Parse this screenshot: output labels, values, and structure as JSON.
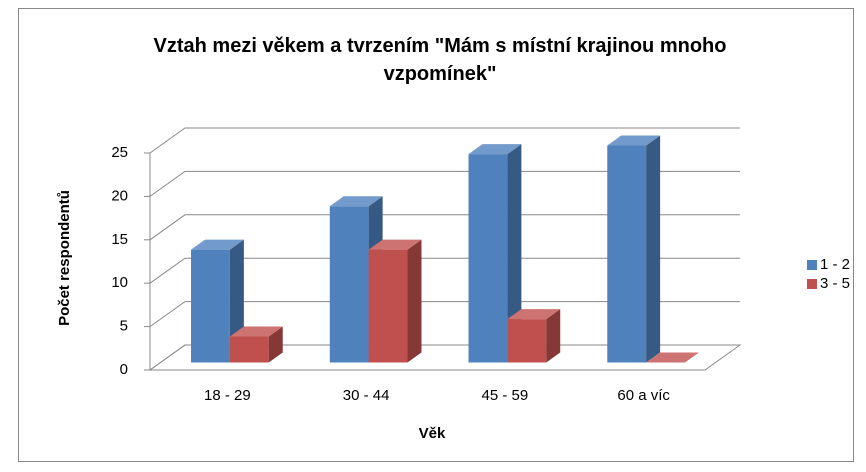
{
  "chart_data": {
    "type": "bar3d",
    "title": "Vztah mezi věkem a tvrzením \"Mám s místní krajinou mnoho vzpomínek\"",
    "xlabel": "Věk",
    "ylabel": "Počet respondentů",
    "categories": [
      "18 - 29",
      "30 - 44",
      "45 - 59",
      "60 a víc"
    ],
    "series": [
      {
        "name": "1 - 2",
        "color": "#4f81bd",
        "values": [
          13,
          18,
          24,
          25
        ]
      },
      {
        "name": "3 - 5",
        "color": "#c0504d",
        "values": [
          3,
          13,
          5,
          0
        ]
      }
    ],
    "ylim": [
      0,
      25
    ],
    "yticks": [
      0,
      5,
      10,
      15,
      20,
      25
    ],
    "grid": true,
    "legend": "right"
  }
}
